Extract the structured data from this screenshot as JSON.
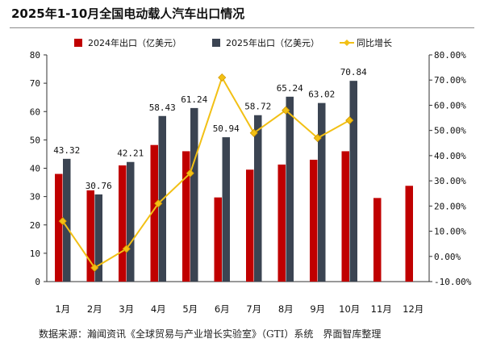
{
  "chart_data": {
    "type": "bar",
    "title": "2025年1-10月全国电动载人汽车出口情况",
    "categories": [
      "1月",
      "2月",
      "3月",
      "4月",
      "5月",
      "6月",
      "7月",
      "8月",
      "9月",
      "10月",
      "11月",
      "12月"
    ],
    "series": [
      {
        "name": "2024年出口（亿美元）",
        "type": "bar",
        "axis": "left",
        "color": "#c00000",
        "values": [
          38.0,
          32.2,
          41.0,
          48.2,
          46.0,
          29.7,
          39.5,
          41.3,
          43.0,
          46.0,
          29.5,
          33.8
        ]
      },
      {
        "name": "2025年出口（亿美元）",
        "type": "bar",
        "axis": "left",
        "color": "#3b4452",
        "values": [
          43.32,
          30.76,
          42.21,
          58.43,
          61.24,
          50.94,
          58.72,
          65.24,
          63.02,
          70.84,
          null,
          null
        ]
      },
      {
        "name": "同比增长",
        "type": "line",
        "axis": "right",
        "color": "#f2c015",
        "values": [
          14.0,
          -4.5,
          3.0,
          21.0,
          33.0,
          71.0,
          49.0,
          58.0,
          47.0,
          54.0,
          null,
          null
        ]
      }
    ],
    "data_labels": [
      "43.32",
      "30.76",
      "42.21",
      "58.43",
      "61.24",
      "50.94",
      "58.72",
      "65.24",
      "63.02",
      "70.84"
    ],
    "y_left": {
      "ylim": [
        0,
        80
      ],
      "ticks": [
        "0",
        "10",
        "20",
        "30",
        "40",
        "50",
        "60",
        "70",
        "80"
      ]
    },
    "y_right": {
      "ylim": [
        -10,
        80
      ],
      "ticks": [
        "-10.00%",
        "0.00%",
        "10.00%",
        "20.00%",
        "30.00%",
        "40.00%",
        "50.00%",
        "60.00%",
        "70.00%",
        "80.00%"
      ]
    },
    "legend_position": "top",
    "grid": false
  },
  "source_text": "数据来源：瀚闻资讯《全球贸易与产业增长实验室》（GTI）系统　界面智库整理"
}
